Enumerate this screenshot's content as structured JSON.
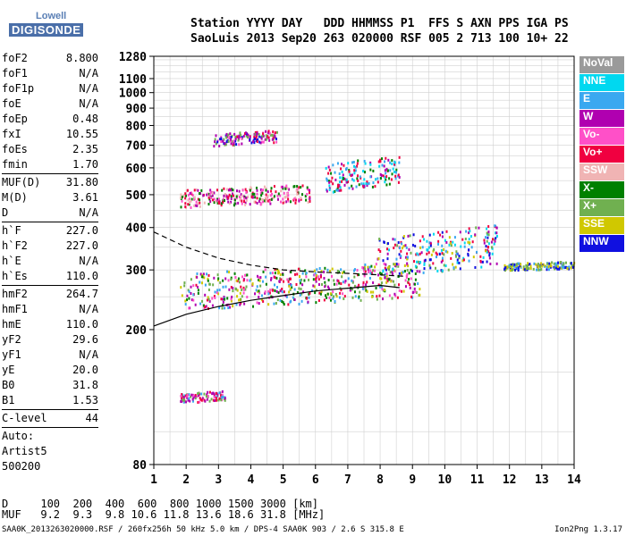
{
  "logo": {
    "line1": "Lowell",
    "line2": "DIGISONDE"
  },
  "header": {
    "line1": "Station YYYY DAY   DDD HHMMSS P1  FFS S AXN PPS IGA PS",
    "line2": "SaoLuis 2013 Sep20 263 020000 RSF 005 2 713 100 10+ 22"
  },
  "params_group1": [
    {
      "name": "foF2",
      "value": "8.800"
    },
    {
      "name": "foF1",
      "value": "N/A"
    },
    {
      "name": "foF1p",
      "value": "N/A"
    },
    {
      "name": "foE",
      "value": "N/A"
    },
    {
      "name": "foEp",
      "value": "0.48"
    },
    {
      "name": "fxI",
      "value": "10.55"
    },
    {
      "name": "foEs",
      "value": "2.35"
    },
    {
      "name": "fmin",
      "value": "1.70"
    }
  ],
  "params_group2": [
    {
      "name": "MUF(D)",
      "value": "31.80"
    },
    {
      "name": "M(D)",
      "value": "3.61"
    },
    {
      "name": "D",
      "value": "N/A"
    }
  ],
  "params_group3": [
    {
      "name": "h`F",
      "value": "227.0"
    },
    {
      "name": "h`F2",
      "value": "227.0"
    },
    {
      "name": "h`E",
      "value": "N/A"
    },
    {
      "name": "h`Es",
      "value": "110.0"
    }
  ],
  "params_group4": [
    {
      "name": "hmF2",
      "value": "264.7"
    },
    {
      "name": "hmF1",
      "value": "N/A"
    },
    {
      "name": "hmE",
      "value": "110.0"
    },
    {
      "name": "yF2",
      "value": "29.6"
    },
    {
      "name": "yF1",
      "value": "N/A"
    },
    {
      "name": "yE",
      "value": "20.0"
    },
    {
      "name": "B0",
      "value": "31.8"
    },
    {
      "name": "B1",
      "value": "1.53"
    }
  ],
  "clevel": {
    "name": "C-level",
    "value": "44"
  },
  "auto": {
    "line1": "Auto:",
    "line2": "Artist5",
    "line3": "500200"
  },
  "legend": [
    {
      "label": "NoVal",
      "color": "#9a9a9a"
    },
    {
      "label": "NNE",
      "color": "#00d8f0"
    },
    {
      "label": "E",
      "color": "#3aa8f0"
    },
    {
      "label": "W",
      "color": "#b000b0"
    },
    {
      "label": "Vo-",
      "color": "#ff50c8"
    },
    {
      "label": "Vo+",
      "color": "#f00040"
    },
    {
      "label": "SSW",
      "color": "#f0b4b4"
    },
    {
      "label": "X-",
      "color": "#008000"
    },
    {
      "label": "X+",
      "color": "#70b050"
    },
    {
      "label": "SSE",
      "color": "#d0c800"
    },
    {
      "label": "NNW",
      "color": "#1010e0"
    }
  ],
  "distance_table": {
    "line1": "D     100  200  400  600  800 1000 1500 3000 [km]",
    "line2": "MUF   9.2  9.3  9.8 10.6 11.8 13.6 18.6 31.8 [MHz]"
  },
  "footer": "SAA0K_2013263020000.RSF / 260fx256h 50 kHz 5.0 km / DPS-4 SAA0K 903 / 2.6 S 315.8 E",
  "version": "Ion2Png 1.3.17",
  "chart_data": {
    "type": "scatter",
    "title": "",
    "xlabel": "",
    "ylabel": "",
    "xlim": [
      1,
      14
    ],
    "ylim": [
      80,
      1280
    ],
    "y_scale": "log",
    "x_ticks": [
      1,
      2,
      3,
      4,
      5,
      6,
      7,
      8,
      9,
      10,
      11,
      12,
      13,
      14
    ],
    "y_ticks": [
      80,
      200,
      300,
      400,
      500,
      600,
      700,
      800,
      900,
      1000,
      1100,
      1280
    ],
    "grid": true,
    "echo_clusters": [
      {
        "name": "Es trace",
        "x": [
          1.8,
          3.2
        ],
        "y": [
          122,
          133
        ],
        "colors": [
          "Vo-",
          "W",
          "E",
          "X+",
          "Vo+"
        ]
      },
      {
        "name": "F trace",
        "x": [
          1.8,
          9.2
        ],
        "y": [
          230,
          320
        ],
        "colors": [
          "Vo+",
          "Vo-",
          "X+",
          "X-",
          "E",
          "W",
          "SSE"
        ]
      },
      {
        "name": "spread F",
        "x": [
          7.9,
          11.6
        ],
        "y": [
          285,
          410
        ],
        "colors": [
          "NNW",
          "E",
          "NNE",
          "SSE",
          "W",
          "X+",
          "Vo+"
        ]
      },
      {
        "name": "F tail",
        "x": [
          11.8,
          14
        ],
        "y": [
          300,
          320
        ],
        "colors": [
          "SSE",
          "E",
          "NNW",
          "X+"
        ]
      },
      {
        "name": "2F trace",
        "x": [
          1.8,
          5.8
        ],
        "y": [
          460,
          540
        ],
        "colors": [
          "Vo+",
          "Vo-",
          "W",
          "SSW",
          "X-"
        ]
      },
      {
        "name": "2F spread",
        "x": [
          6.3,
          8.6
        ],
        "y": [
          510,
          660
        ],
        "colors": [
          "NNE",
          "Vo+",
          "W",
          "E",
          "X-"
        ]
      },
      {
        "name": "3F trace",
        "x": [
          2.8,
          4.8
        ],
        "y": [
          700,
          780
        ],
        "colors": [
          "Vo+",
          "Vo-",
          "W",
          "X+",
          "NNW"
        ]
      }
    ],
    "profile_curves": [
      {
        "name": "virtual height curve",
        "style": "solid",
        "x": [
          1.0,
          2.0,
          3.0,
          4.0,
          5.0,
          6.0,
          7.0,
          8.0,
          8.6
        ],
        "y": [
          205,
          222,
          234,
          244,
          252,
          260,
          265,
          270,
          266
        ]
      },
      {
        "name": "F2 curve",
        "style": "dashed",
        "x": [
          1.0,
          2.0,
          3.0,
          4.0,
          5.0,
          6.0,
          7.0,
          8.0,
          8.8
        ],
        "y": [
          388,
          350,
          325,
          310,
          300,
          296,
          293,
          290,
          287
        ]
      }
    ]
  }
}
